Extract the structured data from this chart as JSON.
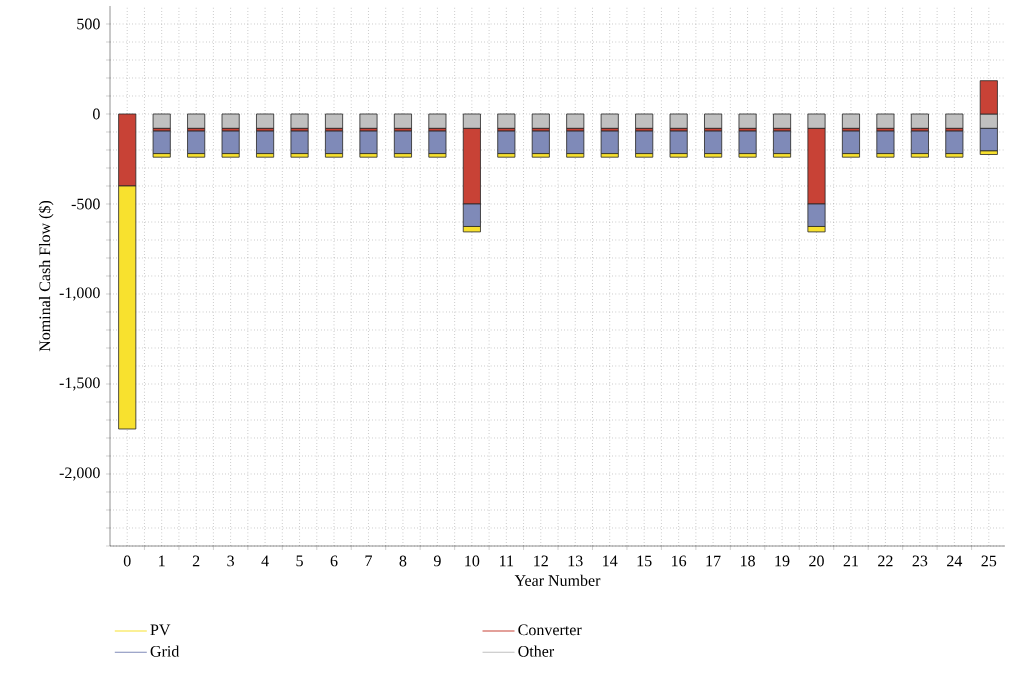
{
  "chart_data": {
    "type": "bar",
    "stacked": true,
    "xlabel": "Year Number",
    "ylabel": "Nominal Cash Flow ($)",
    "categories": [
      "0",
      "1",
      "2",
      "3",
      "4",
      "5",
      "6",
      "7",
      "8",
      "9",
      "10",
      "11",
      "12",
      "13",
      "14",
      "15",
      "16",
      "17",
      "18",
      "19",
      "20",
      "21",
      "22",
      "23",
      "24",
      "25"
    ],
    "series": [
      {
        "name": "Other",
        "color": "#c0c0c0",
        "values": [
          0,
          -80,
          -80,
          -80,
          -80,
          -80,
          -80,
          -80,
          -80,
          -80,
          -80,
          -80,
          -80,
          -80,
          -80,
          -80,
          -80,
          -80,
          -80,
          -80,
          -80,
          -80,
          -80,
          -80,
          -80,
          -80
        ]
      },
      {
        "name": "Converter",
        "color": "#c84236",
        "values": [
          -400,
          -15,
          -15,
          -15,
          -15,
          -15,
          -15,
          -15,
          -15,
          -15,
          -420,
          -15,
          -15,
          -15,
          -15,
          -15,
          -15,
          -15,
          -15,
          -15,
          -420,
          -15,
          -15,
          -15,
          -15,
          185
        ]
      },
      {
        "name": "Grid",
        "color": "#7f8ab8",
        "values": [
          0,
          -125,
          -125,
          -125,
          -125,
          -125,
          -125,
          -125,
          -125,
          -125,
          -125,
          -125,
          -125,
          -125,
          -125,
          -125,
          -125,
          -125,
          -125,
          -125,
          -125,
          -125,
          -125,
          -125,
          -125,
          -125
        ]
      },
      {
        "name": "PV",
        "color": "#f8e12e",
        "values": [
          -1350,
          -20,
          -20,
          -20,
          -20,
          -20,
          -20,
          -20,
          -20,
          -20,
          -30,
          -20,
          -20,
          -20,
          -20,
          -20,
          -20,
          -20,
          -20,
          -20,
          -30,
          -20,
          -20,
          -20,
          -20,
          -20
        ]
      }
    ],
    "ylim": [
      -2400,
      600
    ],
    "yticks": [
      {
        "value": -2400,
        "label": null
      },
      {
        "value": -2300,
        "label": null
      },
      {
        "value": -2200,
        "label": null
      },
      {
        "value": -2100,
        "label": null
      },
      {
        "value": -2000,
        "label": "-2,000"
      },
      {
        "value": -1900,
        "label": null
      },
      {
        "value": -1800,
        "label": null
      },
      {
        "value": -1700,
        "label": null
      },
      {
        "value": -1600,
        "label": null
      },
      {
        "value": -1500,
        "label": "-1,500"
      },
      {
        "value": -1400,
        "label": null
      },
      {
        "value": -1300,
        "label": null
      },
      {
        "value": -1200,
        "label": null
      },
      {
        "value": -1100,
        "label": null
      },
      {
        "value": -1000,
        "label": "-1,000"
      },
      {
        "value": -900,
        "label": null
      },
      {
        "value": -800,
        "label": null
      },
      {
        "value": -700,
        "label": null
      },
      {
        "value": -600,
        "label": null
      },
      {
        "value": -500,
        "label": "-500"
      },
      {
        "value": -400,
        "label": null
      },
      {
        "value": -300,
        "label": null
      },
      {
        "value": -200,
        "label": null
      },
      {
        "value": -100,
        "label": null
      },
      {
        "value": 0,
        "label": "0"
      },
      {
        "value": 100,
        "label": null
      },
      {
        "value": 200,
        "label": null
      },
      {
        "value": 300,
        "label": null
      },
      {
        "value": 400,
        "label": null
      },
      {
        "value": 500,
        "label": "500"
      }
    ],
    "grid": true,
    "legend": "bottom"
  }
}
